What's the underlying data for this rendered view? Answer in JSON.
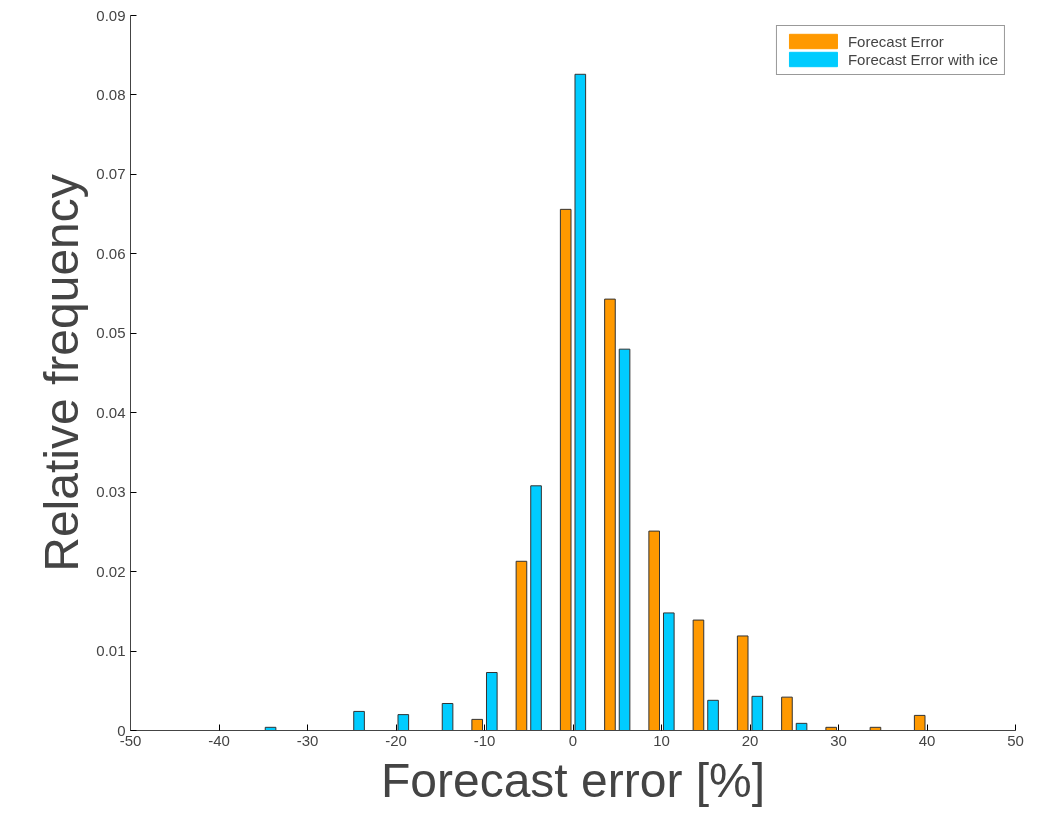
{
  "chart_data": {
    "type": "bar",
    "xlabel": "Forecast error [%]",
    "ylabel": "Relative frequency",
    "x": [
      -40,
      -35,
      -30,
      -25,
      -20,
      -15,
      -10,
      -5,
      0,
      5,
      10,
      15,
      20,
      25,
      30,
      35,
      40
    ],
    "series": [
      {
        "name": "Forecast Error",
        "color": "#ff9900",
        "values": [
          0,
          0,
          0,
          0,
          0,
          0,
          0.0014,
          0.0213,
          0.0656,
          0.0543,
          0.0251,
          0.0139,
          0.0119,
          0.0042,
          0.0004,
          0.0004,
          0.0019
        ]
      },
      {
        "name": "Forecast Error with ice",
        "color": "#00ccff",
        "values": [
          0,
          0.0004,
          0,
          0.0024,
          0.002,
          0.0034,
          0.0073,
          0.0308,
          0.0826,
          0.048,
          0.0148,
          0.0038,
          0.0043,
          0.0009,
          0,
          0,
          0
        ]
      }
    ],
    "xlim": [
      -50,
      50
    ],
    "xticks": [
      -50,
      -40,
      -30,
      -20,
      -10,
      0,
      10,
      20,
      30,
      40,
      50
    ],
    "ylim": [
      0,
      0.09
    ],
    "yticks": [
      0,
      0.01,
      0.02,
      0.03,
      0.04,
      0.05,
      0.06,
      0.07,
      0.08,
      0.09
    ],
    "grid": false,
    "legend": "top right"
  }
}
